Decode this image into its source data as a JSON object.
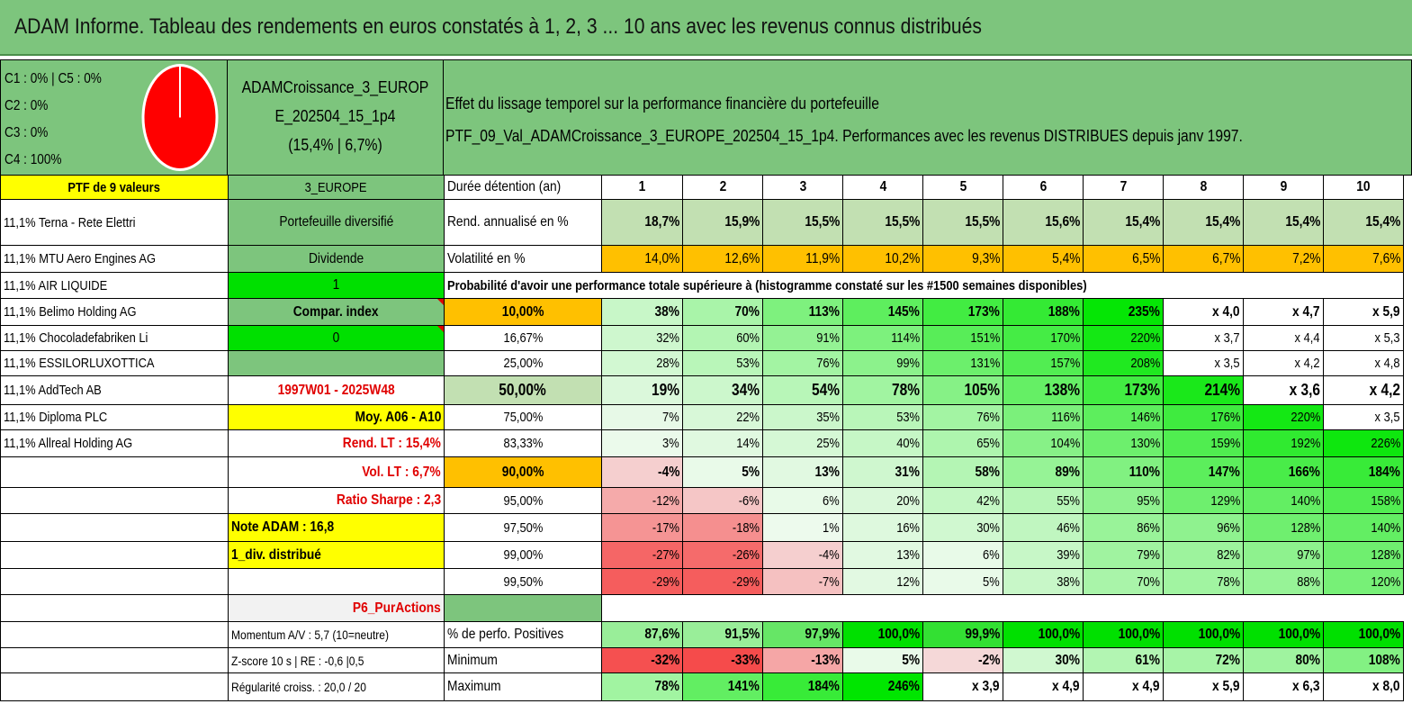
{
  "title": "ADAM Informe. Tableau des rendements en euros constatés à 1, 2, 3 ... 10 ans avec les revenus connus distribués",
  "composition": [
    "C1 : 0% | C5 : 0%",
    "C2 : 0%",
    "C3 : 0%",
    "C4 : 100%"
  ],
  "pie": {
    "color": "#ff0000",
    "slice": "C4",
    "value": 100
  },
  "fund": {
    "name_line1": "ADAMCroissance_3_EUROP",
    "name_line2": "E_202504_15_1p4",
    "stats": "(15,4% | 6,7%)"
  },
  "effect": {
    "line1": "Effet du lissage temporel sur la performance financière du portefeuille",
    "line2": "PTF_09_Val_ADAMCroissance_3_EUROPE_202504_15_1p4. Performances avec les revenus DISTRIBUES depuis janv 1997."
  },
  "header": {
    "ptf": "PTF de 9 valeurs",
    "region": "3_EUROPE",
    "duration_label": "Durée détention (an)",
    "years": [
      "1",
      "2",
      "3",
      "4",
      "5",
      "6",
      "7",
      "8",
      "9",
      "10"
    ]
  },
  "stocks": [
    "11,1% Terna - Rete Elettri",
    "11,1% MTU Aero Engines AG",
    "11,1% AIR LIQUIDE",
    "11,1% Belimo Holding AG",
    "11,1% Chocoladefabriken Li",
    "11,1% ESSILORLUXOTTICA",
    "11,1% AddTech AB",
    "11,1% Diploma PLC",
    "11,1% Allreal Holding AG"
  ],
  "info": {
    "diversified": "Portefeuille diversifié",
    "dividend": "Dividende",
    "one": "1",
    "compar": "Compar. index",
    "zero": "0",
    "period": "1997W01 - 2025W48",
    "moy": "Moy. A06 - A10",
    "rend_lt": "Rend. LT : 15,4%",
    "vol_lt": "Vol. LT : 6,7%",
    "sharpe": "Ratio Sharpe : 2,3",
    "note": "Note ADAM : 16,8",
    "div": "1_div. distribué",
    "p6": "P6_PurActions",
    "momentum": "Momentum A/V : 5,7 (10=neutre)",
    "zscore": "Z-score 10 s | RE : -0,6 |0,5",
    "regularite": "Régularité croiss. : 20,0 / 20"
  },
  "rend": {
    "label": "Rend. annualisé en %",
    "values": [
      "18,7%",
      "15,9%",
      "15,5%",
      "15,5%",
      "15,5%",
      "15,6%",
      "15,4%",
      "15,4%",
      "15,4%",
      "15,4%"
    ]
  },
  "vol": {
    "label": "Volatilité en %",
    "values": [
      "14,0%",
      "12,6%",
      "11,9%",
      "10,2%",
      "9,3%",
      "5,4%",
      "6,5%",
      "6,7%",
      "7,2%",
      "7,6%"
    ]
  },
  "prob_title": "Probabilité d'avoir une performance totale supérieure à (histogramme constaté sur les #1500 semaines disponibles)",
  "prob_rows": [
    {
      "p": "10,00%",
      "values": [
        "38%",
        "70%",
        "113%",
        "145%",
        "173%",
        "188%",
        "235%",
        "x 4,0",
        "x 4,7",
        "x 5,9"
      ]
    },
    {
      "p": "16,67%",
      "values": [
        "32%",
        "60%",
        "91%",
        "114%",
        "151%",
        "170%",
        "220%",
        "x 3,7",
        "x 4,4",
        "x 5,3"
      ]
    },
    {
      "p": "25,00%",
      "values": [
        "28%",
        "53%",
        "76%",
        "99%",
        "131%",
        "157%",
        "208%",
        "x 3,5",
        "x 4,2",
        "x 4,8"
      ]
    },
    {
      "p": "50,00%",
      "values": [
        "19%",
        "34%",
        "54%",
        "78%",
        "105%",
        "138%",
        "173%",
        "214%",
        "x 3,6",
        "x 4,2"
      ]
    },
    {
      "p": "75,00%",
      "values": [
        "7%",
        "22%",
        "35%",
        "53%",
        "76%",
        "116%",
        "146%",
        "176%",
        "220%",
        "x 3,5"
      ]
    },
    {
      "p": "83,33%",
      "values": [
        "3%",
        "14%",
        "25%",
        "40%",
        "65%",
        "104%",
        "130%",
        "159%",
        "192%",
        "226%"
      ]
    },
    {
      "p": "90,00%",
      "values": [
        "-4%",
        "5%",
        "13%",
        "31%",
        "58%",
        "89%",
        "110%",
        "147%",
        "166%",
        "184%"
      ]
    },
    {
      "p": "95,00%",
      "values": [
        "-12%",
        "-6%",
        "6%",
        "20%",
        "42%",
        "55%",
        "95%",
        "129%",
        "140%",
        "158%"
      ]
    },
    {
      "p": "97,50%",
      "values": [
        "-17%",
        "-18%",
        "1%",
        "16%",
        "30%",
        "46%",
        "86%",
        "96%",
        "128%",
        "140%"
      ]
    },
    {
      "p": "99,00%",
      "values": [
        "-27%",
        "-26%",
        "-4%",
        "13%",
        "6%",
        "39%",
        "79%",
        "82%",
        "97%",
        "128%"
      ]
    },
    {
      "p": "99,50%",
      "values": [
        "-29%",
        "-29%",
        "-7%",
        "12%",
        "5%",
        "38%",
        "70%",
        "78%",
        "88%",
        "120%"
      ]
    }
  ],
  "positives": {
    "label": "% de perfo. Positives",
    "values": [
      "87,6%",
      "91,5%",
      "97,9%",
      "100,0%",
      "99,9%",
      "100,0%",
      "100,0%",
      "100,0%",
      "100,0%",
      "100,0%"
    ]
  },
  "minimum": {
    "label": "Minimum",
    "values": [
      "-32%",
      "-33%",
      "-13%",
      "5%",
      "-2%",
      "30%",
      "61%",
      "72%",
      "80%",
      "108%"
    ]
  },
  "maximum": {
    "label": "Maximum",
    "values": [
      "78%",
      "141%",
      "184%",
      "246%",
      "x 3,9",
      "x 4,9",
      "x 4,9",
      "x 5,9",
      "x 6,3",
      "x 8,0"
    ]
  },
  "colors": {
    "header_green": "#7dc57d",
    "yellow": "#ffff00",
    "orange": "#ffc000",
    "bright_green": "#00e000",
    "red_text": "#e00000"
  }
}
